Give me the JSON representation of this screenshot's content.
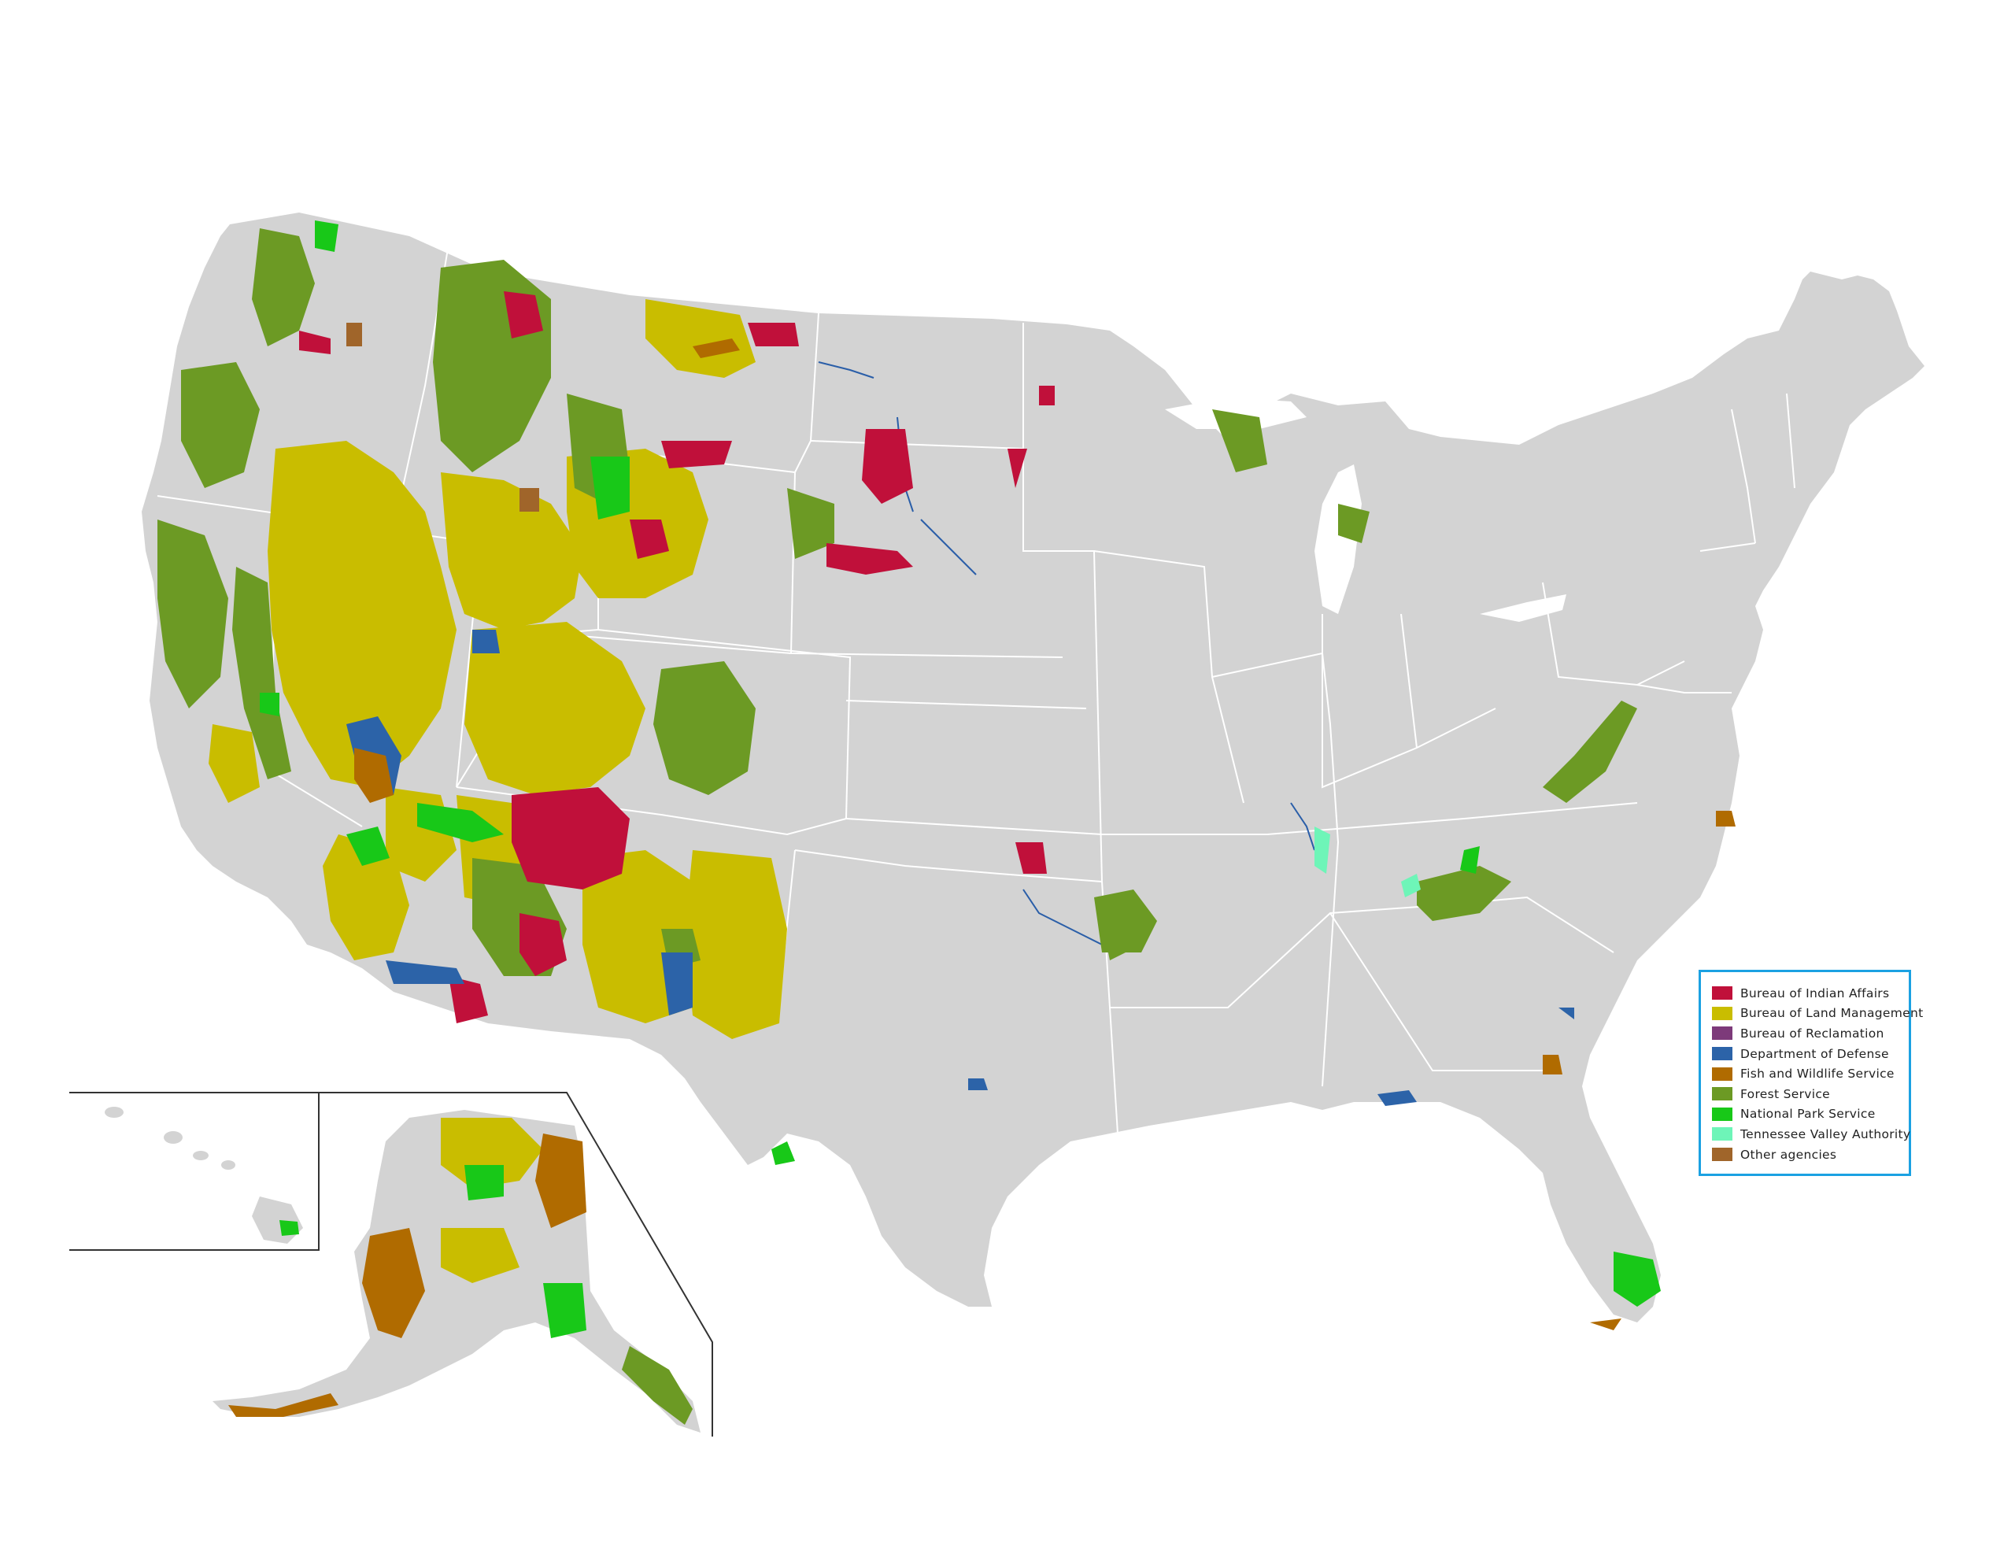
{
  "colors": {
    "land": "#d3d3d3",
    "state_border": "#ffffff",
    "inset_line": "#333333",
    "water_line": "#2a5ea8",
    "legend_border": "#1ba1e2"
  },
  "legend": {
    "items": [
      {
        "label": "Bureau of Indian Affairs",
        "color": "#c0103a"
      },
      {
        "label": "Bureau of Land Management",
        "color": "#c9bd00"
      },
      {
        "label": "Bureau of Reclamation",
        "color": "#7d3a7a"
      },
      {
        "label": "Department of Defense",
        "color": "#2c63a8"
      },
      {
        "label": "Fish and Wildlife Service",
        "color": "#b06b00"
      },
      {
        "label": "Forest Service",
        "color": "#6c9a24"
      },
      {
        "label": "National Park Service",
        "color": "#18c818"
      },
      {
        "label": "Tennessee Valley Authority",
        "color": "#6ef5b8"
      },
      {
        "label": "Other agencies",
        "color": "#a0652a"
      }
    ]
  }
}
